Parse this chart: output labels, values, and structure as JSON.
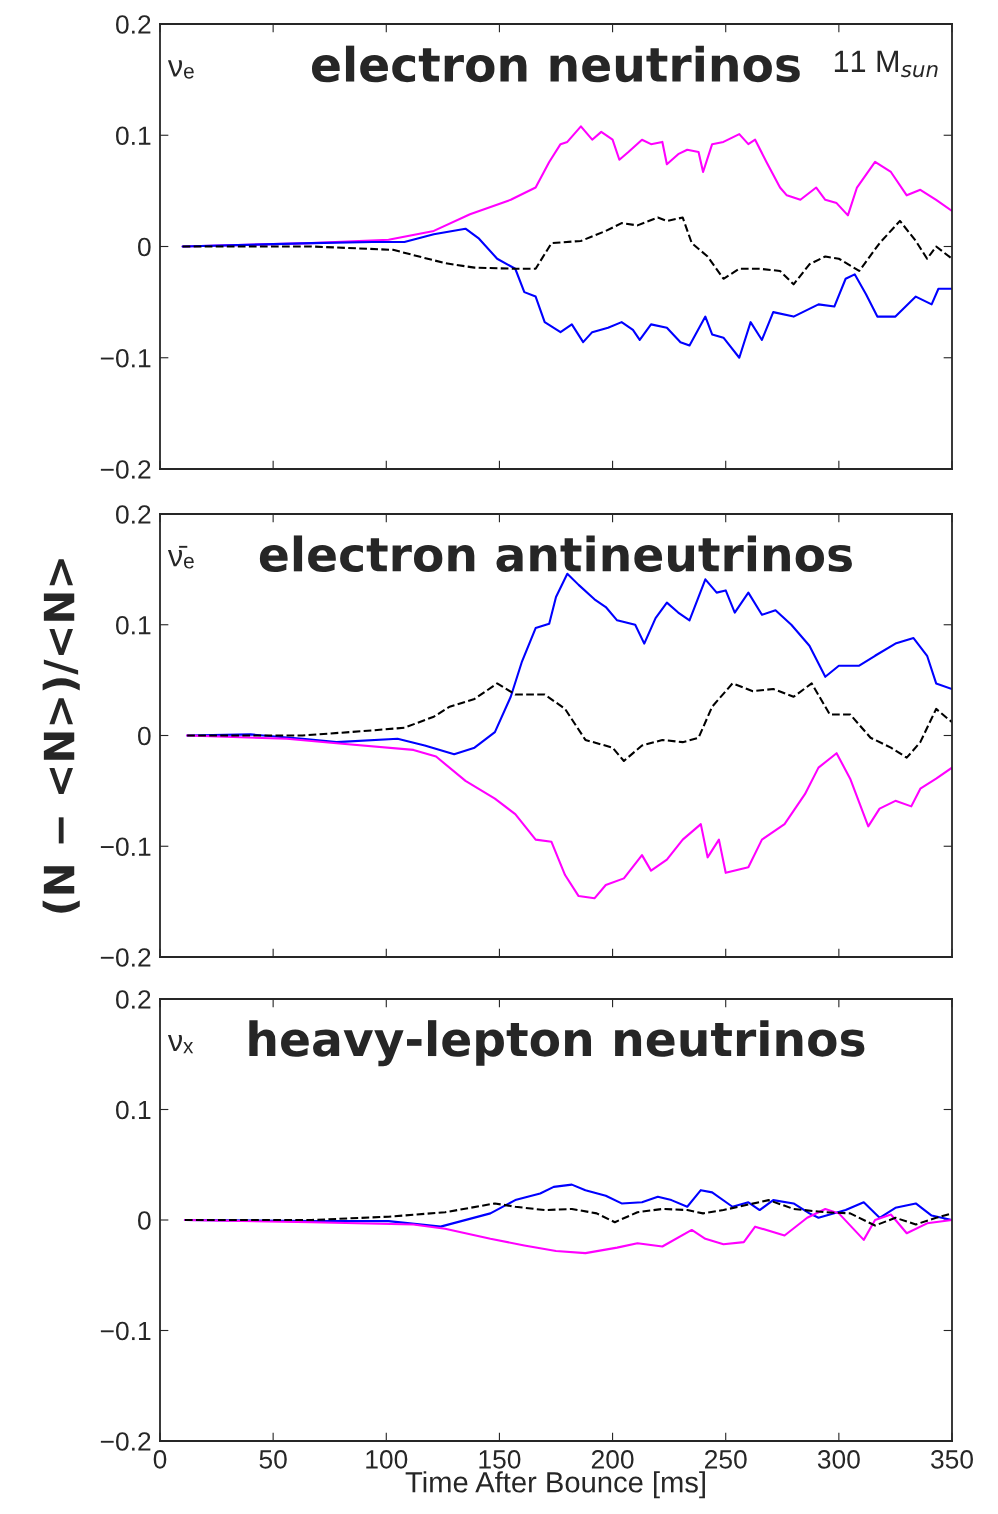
{
  "chart_data": [
    {
      "type": "line",
      "title": "electron neutrinos",
      "annotations": [
        "νₑ",
        "11 M$_{sun}$"
      ],
      "xlim": [
        0,
        350
      ],
      "xticks": [
        0,
        50,
        100,
        150,
        200,
        250,
        300,
        350
      ],
      "ylim": [
        -0.2,
        0.2
      ],
      "yticks": [
        -0.2,
        -0.1,
        0,
        0.1,
        0.2
      ],
      "tick_labels": "y",
      "grid": false,
      "legend": false,
      "series": [
        {
          "color": "#ff00ff",
          "line_style": "solid",
          "x": [
            10,
            67,
            101,
            121,
            137,
            155,
            166,
            172,
            177,
            180,
            186,
            191,
            195,
            200,
            203,
            207,
            213,
            217,
            222,
            224,
            229,
            233,
            238,
            240,
            244,
            249,
            256,
            260,
            263,
            268,
            274,
            277,
            283,
            290,
            294,
            299,
            304,
            308,
            316,
            323,
            330,
            336,
            343,
            350
          ],
          "values": [
            0,
            0.003,
            0.006,
            0.014,
            0.029,
            0.042,
            0.053,
            0.076,
            0.092,
            0.094,
            0.108,
            0.096,
            0.103,
            0.096,
            0.078,
            0.085,
            0.096,
            0.092,
            0.094,
            0.074,
            0.083,
            0.087,
            0.085,
            0.067,
            0.092,
            0.094,
            0.101,
            0.092,
            0.096,
            0.076,
            0.053,
            0.046,
            0.042,
            0.053,
            0.042,
            0.039,
            0.028,
            0.053,
            0.076,
            0.067,
            0.046,
            0.051,
            0.042,
            0.032
          ]
        },
        {
          "color": "#0000ff",
          "line_style": "solid",
          "x": [
            10,
            67,
            94,
            108,
            121,
            135,
            141,
            149,
            157,
            161,
            166,
            170,
            177,
            182,
            187,
            191,
            198,
            204,
            209,
            212,
            217,
            224,
            230,
            234,
            241,
            244,
            249,
            256,
            261,
            266,
            271,
            280,
            291,
            298,
            303,
            307,
            312,
            317,
            325,
            334,
            341,
            344,
            350
          ],
          "values": [
            0,
            0.003,
            0.004,
            0.004,
            0.011,
            0.016,
            0.007,
            -0.011,
            -0.02,
            -0.041,
            -0.045,
            -0.068,
            -0.077,
            -0.07,
            -0.086,
            -0.077,
            -0.073,
            -0.068,
            -0.075,
            -0.084,
            -0.07,
            -0.073,
            -0.086,
            -0.089,
            -0.063,
            -0.079,
            -0.082,
            -0.1,
            -0.068,
            -0.084,
            -0.059,
            -0.063,
            -0.052,
            -0.054,
            -0.029,
            -0.025,
            -0.043,
            -0.063,
            -0.063,
            -0.045,
            -0.052,
            -0.038,
            -0.038
          ]
        },
        {
          "color": "#000000",
          "line_style": "dashed",
          "x": [
            10,
            67,
            103,
            126,
            139,
            157,
            166,
            173,
            186,
            197,
            204,
            211,
            220,
            224,
            231,
            235,
            242,
            249,
            256,
            265,
            274,
            280,
            287,
            294,
            300,
            309,
            318,
            327,
            334,
            339,
            343,
            350
          ],
          "values": [
            0,
            0,
            -0.003,
            -0.015,
            -0.019,
            -0.02,
            -0.02,
            0.003,
            0.005,
            0.014,
            0.021,
            0.019,
            0.026,
            0.023,
            0.026,
            0.003,
            -0.009,
            -0.029,
            -0.02,
            -0.02,
            -0.022,
            -0.034,
            -0.016,
            -0.009,
            -0.011,
            -0.022,
            0.003,
            0.023,
            0.005,
            -0.011,
            0,
            -0.011
          ]
        }
      ]
    },
    {
      "type": "line",
      "title": "electron antineutrinos",
      "ylabel": "(N − <N>)/<N>",
      "annotations": [
        "ν̄ₑ"
      ],
      "xlim": [
        0,
        350
      ],
      "xticks": [
        0,
        50,
        100,
        150,
        200,
        250,
        300,
        350
      ],
      "ylim": [
        -0.2,
        0.2
      ],
      "yticks": [
        -0.2,
        -0.1,
        0,
        0.1,
        0.2
      ],
      "tick_labels": "y",
      "grid": false,
      "legend": false,
      "series": [
        {
          "color": "#0000ff",
          "line_style": "solid",
          "x": [
            12,
            40,
            63,
            78,
            105,
            117,
            130,
            139,
            148,
            155,
            160,
            166,
            172,
            175,
            180,
            185,
            192,
            197,
            202,
            210,
            214,
            219,
            224,
            229,
            234,
            241,
            246,
            250,
            254,
            260,
            266,
            272,
            279,
            287,
            294,
            300,
            309,
            316,
            325,
            333,
            339,
            343,
            350
          ],
          "values": [
            0,
            0.001,
            -0.003,
            -0.006,
            -0.003,
            -0.009,
            -0.017,
            -0.011,
            0.003,
            0.035,
            0.067,
            0.097,
            0.101,
            0.125,
            0.146,
            0.136,
            0.123,
            0.116,
            0.104,
            0.1,
            0.083,
            0.106,
            0.12,
            0.111,
            0.104,
            0.141,
            0.129,
            0.131,
            0.111,
            0.129,
            0.109,
            0.113,
            0.1,
            0.081,
            0.053,
            0.063,
            0.063,
            0.072,
            0.083,
            0.088,
            0.072,
            0.047,
            0.042
          ]
        },
        {
          "color": "#ff00ff",
          "line_style": "solid",
          "x": [
            12,
            56,
            78,
            112,
            122,
            135,
            148,
            157,
            166,
            173,
            179,
            185,
            192,
            197,
            205,
            213,
            217,
            224,
            231,
            239,
            242,
            247,
            250,
            260,
            266,
            276,
            285,
            291,
            299,
            305,
            313,
            318,
            325,
            332,
            336,
            343,
            350
          ],
          "values": [
            0,
            -0.003,
            -0.007,
            -0.013,
            -0.019,
            -0.041,
            -0.057,
            -0.071,
            -0.094,
            -0.096,
            -0.126,
            -0.145,
            -0.147,
            -0.135,
            -0.129,
            -0.108,
            -0.122,
            -0.112,
            -0.094,
            -0.08,
            -0.11,
            -0.094,
            -0.124,
            -0.119,
            -0.094,
            -0.08,
            -0.053,
            -0.029,
            -0.016,
            -0.039,
            -0.082,
            -0.066,
            -0.059,
            -0.064,
            -0.048,
            -0.039,
            -0.029
          ]
        },
        {
          "color": "#000000",
          "line_style": "dashed",
          "x": [
            12,
            63,
            90,
            108,
            121,
            128,
            139,
            149,
            157,
            170,
            179,
            188,
            200,
            205,
            213,
            222,
            231,
            238,
            244,
            253,
            262,
            271,
            280,
            288,
            296,
            305,
            314,
            323,
            330,
            336,
            343,
            350
          ],
          "values": [
            0,
            0,
            0.004,
            0.007,
            0.017,
            0.026,
            0.033,
            0.047,
            0.037,
            0.037,
            0.024,
            -0.004,
            -0.011,
            -0.023,
            -0.009,
            -0.004,
            -0.006,
            -0.002,
            0.026,
            0.047,
            0.04,
            0.042,
            0.035,
            0.047,
            0.019,
            0.019,
            -0.002,
            -0.011,
            -0.02,
            -0.006,
            0.024,
            0.012
          ]
        }
      ]
    },
    {
      "type": "line",
      "title": "heavy-lepton neutrinos",
      "xlabel": "Time After Bounce [ms]",
      "annotations": [
        "νₓ"
      ],
      "xlim": [
        0,
        350
      ],
      "xticks": [
        0,
        50,
        100,
        150,
        200,
        250,
        300,
        350
      ],
      "ylim": [
        -0.2,
        0.2
      ],
      "yticks": [
        -0.2,
        -0.1,
        0,
        0.1,
        0.2
      ],
      "grid": false,
      "legend": false,
      "series": [
        {
          "color": "#0000ff",
          "line_style": "solid",
          "x": [
            11,
            67,
            101,
            124,
            146,
            157,
            168,
            174,
            182,
            188,
            197,
            204,
            213,
            220,
            226,
            233,
            239,
            244,
            253,
            260,
            265,
            271,
            280,
            287,
            291,
            303,
            311,
            318,
            325,
            334,
            341,
            350
          ],
          "values": [
            0,
            -0.001,
            -0.001,
            -0.006,
            0.006,
            0.018,
            0.024,
            0.03,
            0.032,
            0.027,
            0.022,
            0.015,
            0.016,
            0.021,
            0.018,
            0.012,
            0.027,
            0.025,
            0.012,
            0.016,
            0.009,
            0.018,
            0.015,
            0.006,
            0.002,
            0.009,
            0.016,
            0.002,
            0.011,
            0.015,
            0.004,
            0
          ]
        },
        {
          "color": "#ff00ff",
          "line_style": "solid",
          "x": [
            11,
            67,
            112,
            126,
            146,
            161,
            175,
            188,
            202,
            211,
            222,
            235,
            241,
            249,
            258,
            263,
            276,
            286,
            294,
            300,
            311,
            316,
            323,
            330,
            339,
            350
          ],
          "values": [
            0,
            -0.002,
            -0.004,
            -0.008,
            -0.017,
            -0.023,
            -0.028,
            -0.03,
            -0.025,
            -0.021,
            -0.024,
            -0.009,
            -0.017,
            -0.022,
            -0.02,
            -0.006,
            -0.014,
            0.002,
            0.01,
            0.006,
            -0.018,
            0,
            0.005,
            -0.012,
            -0.003,
            0
          ]
        },
        {
          "color": "#000000",
          "line_style": "dashed",
          "x": [
            11,
            67,
            101,
            126,
            148,
            157,
            170,
            182,
            193,
            201,
            211,
            222,
            233,
            240,
            249,
            269,
            280,
            294,
            305,
            316,
            325,
            334,
            343,
            350
          ],
          "values": [
            0,
            0,
            0.003,
            0.007,
            0.015,
            0.012,
            0.009,
            0.01,
            0.006,
            -0.002,
            0.007,
            0.01,
            0.009,
            0.006,
            0.009,
            0.018,
            0.01,
            0.007,
            0.006,
            -0.005,
            0.002,
            -0.004,
            0.002,
            0.006
          ]
        }
      ]
    }
  ]
}
